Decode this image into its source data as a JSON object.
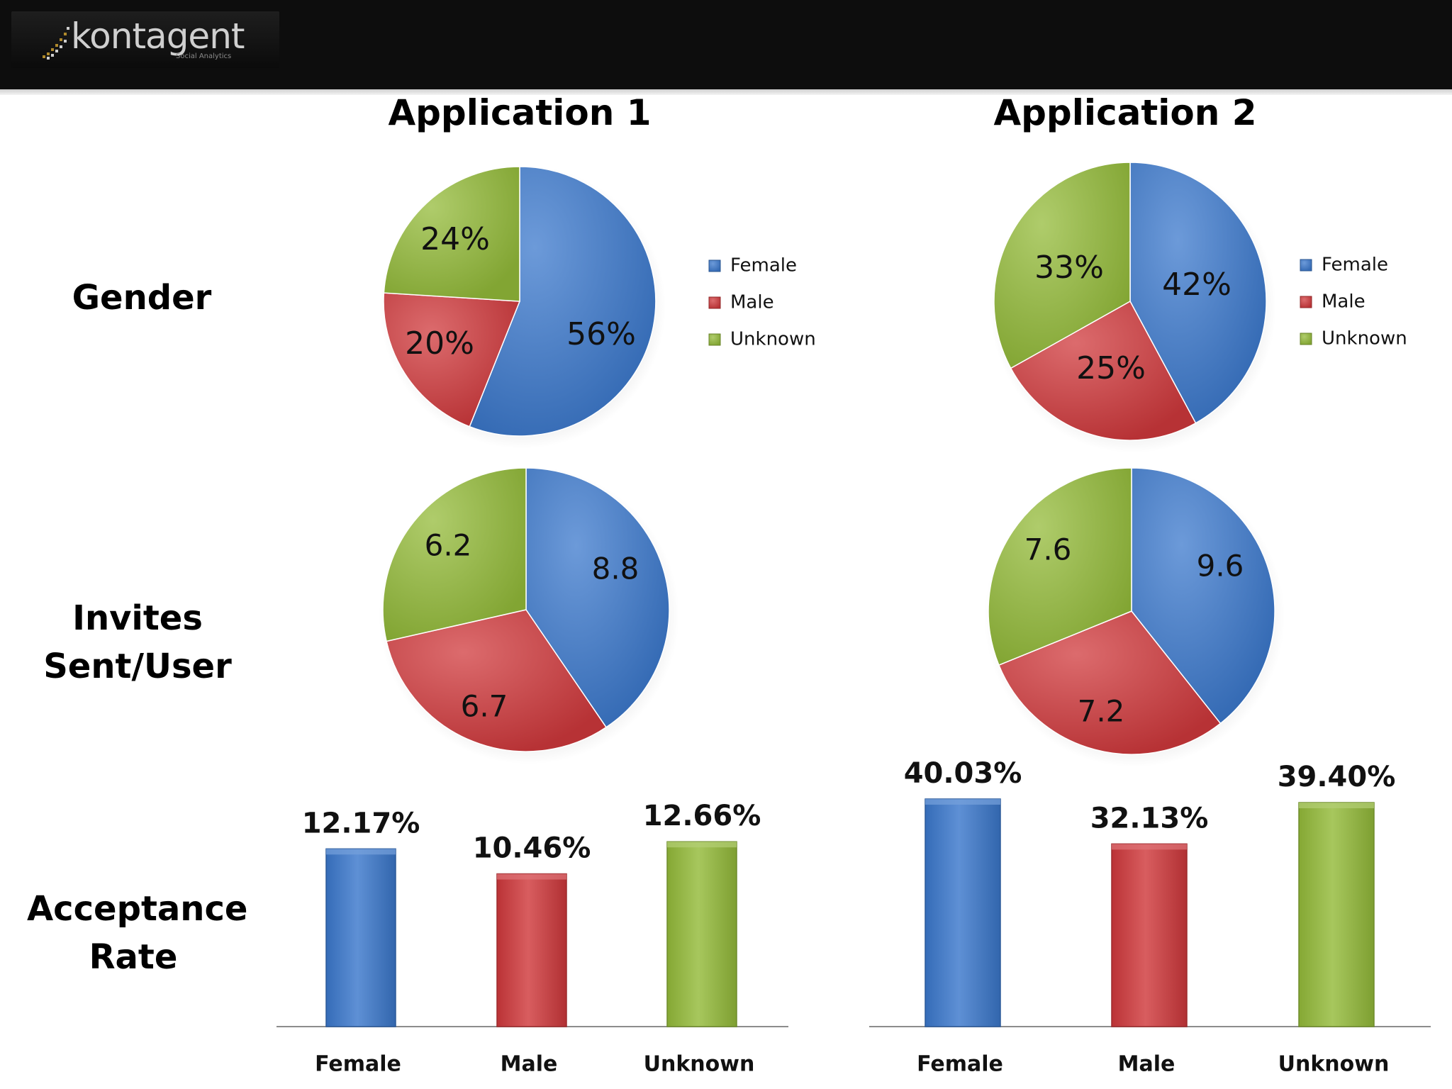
{
  "header": {
    "logo_text": "kontagent",
    "logo_subtitle": "Social Analytics"
  },
  "columns": [
    "Application 1",
    "Application 2"
  ],
  "rows": {
    "gender": "Gender",
    "invites_line1": "Invites",
    "invites_line2": "Sent/User",
    "acceptance_line1": "Acceptance",
    "acceptance_line2": "Rate"
  },
  "colors": {
    "female": "#3b78cc",
    "male": "#d0393c",
    "unknown": "#94bb3a"
  },
  "legend": [
    "Female",
    "Male",
    "Unknown"
  ],
  "chart_data": [
    {
      "type": "pie",
      "title": "Application 1 - Gender",
      "categories": [
        "Female",
        "Male",
        "Unknown"
      ],
      "values": [
        56,
        20,
        24
      ],
      "labels": [
        "56%",
        "20%",
        "24%"
      ]
    },
    {
      "type": "pie",
      "title": "Application 2 - Gender",
      "categories": [
        "Female",
        "Male",
        "Unknown"
      ],
      "values": [
        42,
        25,
        33
      ],
      "labels": [
        "42%",
        "25%",
        "33%"
      ]
    },
    {
      "type": "pie",
      "title": "Application 1 - Invites Sent/User",
      "categories": [
        "Female",
        "Male",
        "Unknown"
      ],
      "values": [
        8.8,
        6.7,
        6.2
      ],
      "labels": [
        "8.8",
        "6.7",
        "6.2"
      ]
    },
    {
      "type": "pie",
      "title": "Application 2 - Invites Sent/User",
      "categories": [
        "Female",
        "Male",
        "Unknown"
      ],
      "values": [
        9.6,
        7.2,
        7.6
      ],
      "labels": [
        "9.6",
        "7.2",
        "7.6"
      ]
    },
    {
      "type": "bar",
      "title": "Application 1 - Acceptance Rate",
      "categories": [
        "Female",
        "Male",
        "Unknown"
      ],
      "values": [
        12.17,
        10.46,
        12.66
      ],
      "labels": [
        "12.17%",
        "10.46%",
        "12.66%"
      ]
    },
    {
      "type": "bar",
      "title": "Application 2 - Acceptance Rate",
      "categories": [
        "Female",
        "Male",
        "Unknown"
      ],
      "values": [
        40.03,
        32.13,
        39.4
      ],
      "labels": [
        "40.03%",
        "32.13%",
        "39.40%"
      ]
    }
  ]
}
